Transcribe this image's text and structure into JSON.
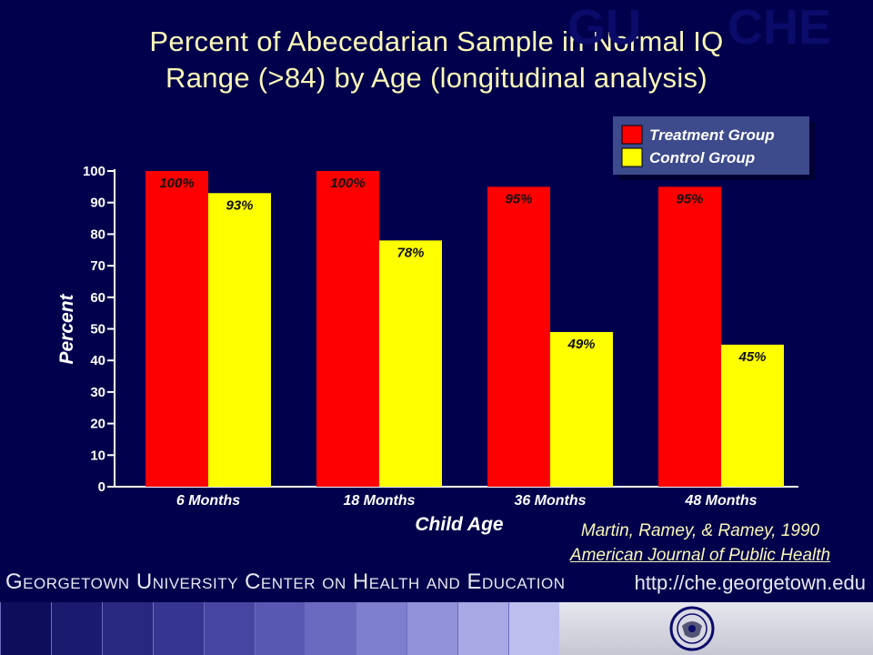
{
  "title": {
    "line1": "Percent of Abecedarian Sample in Normal IQ",
    "line2": "Range (>84) by Age (longitudinal analysis)"
  },
  "chart_data": {
    "type": "bar",
    "categories": [
      "6 Months",
      "18 Months",
      "36 Months",
      "48 Months"
    ],
    "series": [
      {
        "name": "Treatment Group",
        "color": "#ff0000",
        "values": [
          100,
          100,
          95,
          95
        ],
        "labels": [
          "100%",
          "100%",
          "95%",
          "95%"
        ]
      },
      {
        "name": "Control Group",
        "color": "#ffff00",
        "values": [
          93,
          78,
          49,
          45
        ],
        "labels": [
          "93%",
          "78%",
          "49%",
          "45%"
        ]
      }
    ],
    "xlabel": "Child Age",
    "ylabel": "Percent",
    "ylim": [
      0,
      100
    ],
    "yticks": [
      0,
      10,
      20,
      30,
      40,
      50,
      60,
      70,
      80,
      90,
      100
    ],
    "legend_position": "top-right",
    "grid": false
  },
  "citation": {
    "authors": "Martin, Ramey, & Ramey, 1990",
    "journal": "American Journal of Public Health"
  },
  "footer": {
    "center_name": "Georgetown University Center on Health and Education",
    "url": "http://che.georgetown.edu",
    "logo_left": "GU",
    "logo_right": "CHE",
    "seal": "georgetown-seal-icon"
  }
}
